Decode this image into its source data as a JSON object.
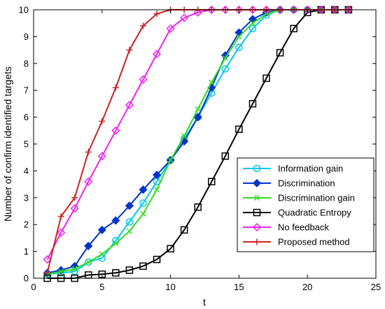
{
  "chart_data": {
    "type": "line",
    "title": "",
    "xlabel": "t",
    "ylabel": "Number of confirm identified targets",
    "xlim": [
      0,
      25
    ],
    "ylim": [
      0,
      10
    ],
    "xticks": [
      0,
      5,
      10,
      15,
      20,
      25
    ],
    "yticks": [
      0,
      1,
      2,
      3,
      4,
      5,
      6,
      7,
      8,
      9,
      10
    ],
    "grid": false,
    "legend_position": "bottom-right",
    "x": [
      1,
      2,
      3,
      4,
      5,
      6,
      7,
      8,
      9,
      10,
      11,
      12,
      13,
      14,
      15,
      16,
      17,
      18,
      19,
      20,
      21,
      22,
      23
    ],
    "series": [
      {
        "name": "Information gain",
        "color": "#00c8e6",
        "marker": "circle",
        "values": [
          0.15,
          0.2,
          0.25,
          0.6,
          0.75,
          1.4,
          2.1,
          2.8,
          3.6,
          4.4,
          5.2,
          6.0,
          6.9,
          7.8,
          8.6,
          9.3,
          9.8,
          10,
          10,
          10,
          10,
          10,
          10
        ]
      },
      {
        "name": "Discrimination",
        "color": "#0033cc",
        "marker": "diamond",
        "values": [
          0.2,
          0.3,
          0.45,
          1.2,
          1.8,
          2.15,
          2.7,
          3.3,
          3.85,
          4.4,
          5.1,
          6.0,
          7.1,
          8.3,
          9.15,
          9.65,
          9.9,
          10,
          10,
          10,
          10,
          10,
          10
        ]
      },
      {
        "name": "Discrimination gain",
        "color": "#33dd22",
        "marker": "x",
        "values": [
          0.15,
          0.25,
          0.35,
          0.6,
          0.9,
          1.3,
          1.75,
          2.4,
          3.3,
          4.4,
          5.3,
          6.3,
          7.3,
          8.2,
          9.0,
          9.5,
          9.85,
          10,
          10,
          10,
          10,
          10,
          10
        ]
      },
      {
        "name": "Quadratic Entropy",
        "color": "#000000",
        "marker": "square",
        "values": [
          0,
          0,
          0,
          0.12,
          0.15,
          0.2,
          0.3,
          0.45,
          0.7,
          1.1,
          1.8,
          2.65,
          3.6,
          4.55,
          5.55,
          6.5,
          7.45,
          8.4,
          9.3,
          9.9,
          10,
          10,
          10
        ]
      },
      {
        "name": "No feedback",
        "color": "#ee22ee",
        "marker": "diamond",
        "values": [
          0.7,
          1.7,
          2.6,
          3.6,
          4.55,
          5.5,
          6.45,
          7.4,
          8.35,
          9.3,
          9.7,
          9.9,
          10,
          10,
          10,
          10,
          10,
          10,
          10,
          10,
          10,
          10,
          10
        ]
      },
      {
        "name": "Proposed method",
        "color": "#cc2222",
        "marker": "plus",
        "values": [
          0.2,
          2.3,
          3.0,
          4.7,
          5.85,
          7.1,
          8.5,
          9.4,
          9.85,
          10,
          10,
          10,
          10,
          10,
          10,
          10,
          10,
          10,
          10,
          10,
          10,
          10,
          10
        ]
      }
    ]
  }
}
